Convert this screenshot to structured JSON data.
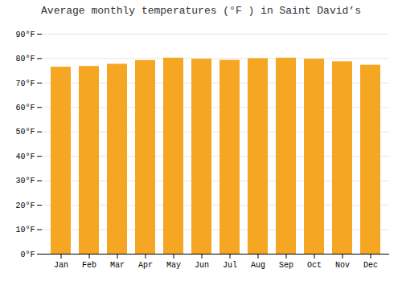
{
  "chart_data": {
    "type": "bar",
    "title": "Average monthly temperatures (°F ) in Saint David’s",
    "categories": [
      "Jan",
      "Feb",
      "Mar",
      "Apr",
      "May",
      "Jun",
      "Jul",
      "Aug",
      "Sep",
      "Oct",
      "Nov",
      "Dec"
    ],
    "values": [
      76.5,
      76.8,
      77.7,
      79.2,
      80.2,
      79.8,
      79.3,
      80.0,
      80.2,
      79.8,
      78.7,
      77.3
    ],
    "color": "#F5A623",
    "ylim": [
      0,
      90
    ],
    "yticks": [
      {
        "value": 0,
        "label": "0°F"
      },
      {
        "value": 10,
        "label": "10°F"
      },
      {
        "value": 20,
        "label": "20°F"
      },
      {
        "value": 30,
        "label": "30°F"
      },
      {
        "value": 40,
        "label": "40°F"
      },
      {
        "value": 50,
        "label": "50°F"
      },
      {
        "value": 60,
        "label": "60°F"
      },
      {
        "value": 70,
        "label": "70°F"
      },
      {
        "value": 80,
        "label": "80°F"
      },
      {
        "value": 90,
        "label": "90°F"
      }
    ],
    "grid": true
  }
}
